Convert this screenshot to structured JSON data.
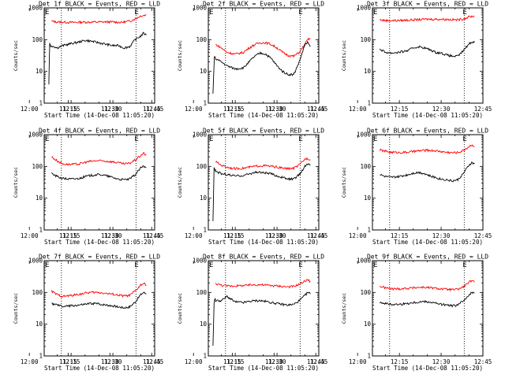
{
  "figure": {
    "background": "#ffffff"
  },
  "colors": {
    "events": "#000000",
    "lld": "#ff0000",
    "axis": "#000000"
  },
  "shared": {
    "xlabel": "Start Time (14-Dec-08 11:05:20)",
    "ylabel": "Counts/sec",
    "xticks": [
      "11:15",
      "11:30",
      "11:45",
      "12:00",
      "12:15",
      "12:30",
      "12:45"
    ],
    "yticks": [
      "1",
      "10",
      "100",
      "1000"
    ],
    "flag_label": "E"
  },
  "chart_data": [
    {
      "type": "line",
      "title": "Det 1f BLACK = Events, RED = LLD",
      "x_range_minutes": [
        5.33,
        45
      ],
      "ylim": [
        1,
        1000
      ],
      "yscale": "log",
      "marker_lines_minutes": [
        11.5,
        38.3
      ],
      "series": [
        {
          "name": "LLD",
          "color": "#ff0000",
          "x": [
            8,
            10,
            15,
            20,
            25,
            30,
            33,
            36,
            38,
            40,
            42
          ],
          "y": [
            380,
            360,
            350,
            355,
            360,
            360,
            350,
            380,
            450,
            560,
            600
          ]
        },
        {
          "name": "Events",
          "color": "#000000",
          "x": [
            7,
            7.3,
            7.6,
            8,
            9,
            10,
            12,
            15,
            18,
            20,
            22,
            25,
            28,
            30,
            32,
            34,
            36,
            38,
            40,
            41,
            42
          ],
          "y": [
            4,
            80,
            60,
            65,
            60,
            55,
            65,
            75,
            85,
            95,
            90,
            80,
            70,
            65,
            65,
            55,
            60,
            100,
            130,
            160,
            140
          ]
        }
      ]
    },
    {
      "type": "line",
      "title": "Det 2f BLACK = Events, RED = LLD",
      "x_range_minutes": [
        5.33,
        45
      ],
      "ylim": [
        1,
        1000
      ],
      "yscale": "log",
      "marker_lines_minutes": [
        11.5,
        38.3
      ],
      "series": [
        {
          "name": "LLD",
          "color": "#ff0000",
          "x": [
            8,
            10,
            12,
            15,
            18,
            20,
            22,
            24,
            26,
            28,
            30,
            32,
            34,
            36,
            38,
            40,
            41,
            42
          ],
          "y": [
            70,
            55,
            40,
            35,
            40,
            55,
            70,
            80,
            80,
            70,
            55,
            40,
            32,
            30,
            40,
            70,
            100,
            110
          ]
        },
        {
          "name": "Events",
          "color": "#000000",
          "x": [
            7,
            7.5,
            8,
            10,
            12,
            15,
            18,
            20,
            22,
            24,
            26,
            28,
            30,
            32,
            34,
            36,
            38,
            40,
            41,
            42
          ],
          "y": [
            2,
            30,
            25,
            20,
            15,
            12,
            13,
            20,
            30,
            38,
            35,
            25,
            15,
            10,
            8,
            8,
            20,
            70,
            80,
            60
          ]
        }
      ]
    },
    {
      "type": "line",
      "title": "Det 3f BLACK = Events, RED = LLD",
      "x_range_minutes": [
        5.33,
        45
      ],
      "ylim": [
        1,
        1000
      ],
      "yscale": "log",
      "marker_lines_minutes": [
        11.5,
        38.3
      ],
      "series": [
        {
          "name": "LLD",
          "color": "#ff0000",
          "x": [
            8,
            10,
            15,
            20,
            25,
            30,
            33,
            36,
            38,
            40,
            42
          ],
          "y": [
            420,
            400,
            400,
            420,
            440,
            440,
            430,
            420,
            450,
            520,
            560
          ]
        },
        {
          "name": "Events",
          "color": "#000000",
          "x": [
            8,
            10,
            12,
            15,
            18,
            20,
            22,
            24,
            26,
            28,
            30,
            32,
            34,
            36,
            38,
            40,
            42
          ],
          "y": [
            50,
            40,
            38,
            40,
            45,
            55,
            60,
            55,
            48,
            40,
            38,
            33,
            30,
            30,
            45,
            75,
            90
          ]
        }
      ]
    },
    {
      "type": "line",
      "title": "Det 4f BLACK = Events, RED = LLD",
      "x_range_minutes": [
        5.33,
        45
      ],
      "ylim": [
        1,
        1000
      ],
      "yscale": "log",
      "marker_lines_minutes": [
        11.5,
        38.3
      ],
      "series": [
        {
          "name": "LLD",
          "color": "#ff0000",
          "x": [
            8,
            10,
            12,
            15,
            18,
            20,
            22,
            24,
            26,
            28,
            30,
            32,
            34,
            36,
            38,
            40,
            41,
            42
          ],
          "y": [
            200,
            150,
            120,
            115,
            120,
            135,
            145,
            150,
            150,
            145,
            140,
            130,
            120,
            125,
            160,
            220,
            260,
            230
          ]
        },
        {
          "name": "Events",
          "color": "#000000",
          "x": [
            8,
            10,
            12,
            15,
            18,
            20,
            22,
            24,
            26,
            28,
            30,
            32,
            34,
            36,
            38,
            40,
            41,
            42
          ],
          "y": [
            60,
            48,
            42,
            40,
            42,
            48,
            52,
            55,
            55,
            50,
            45,
            40,
            38,
            40,
            55,
            90,
            100,
            90
          ]
        }
      ]
    },
    {
      "type": "line",
      "title": "Det 5f BLACK = Events, RED = LLD",
      "x_range_minutes": [
        5.33,
        45
      ],
      "ylim": [
        1,
        1000
      ],
      "yscale": "log",
      "marker_lines_minutes": [
        11.5,
        38.3
      ],
      "series": [
        {
          "name": "LLD",
          "color": "#ff0000",
          "x": [
            8,
            10,
            12,
            15,
            18,
            20,
            22,
            24,
            26,
            28,
            30,
            32,
            34,
            36,
            38,
            40,
            41,
            42
          ],
          "y": [
            140,
            110,
            95,
            85,
            88,
            95,
            100,
            105,
            105,
            100,
            95,
            88,
            85,
            88,
            110,
            170,
            180,
            160
          ]
        },
        {
          "name": "Events",
          "color": "#000000",
          "x": [
            7,
            7.4,
            7.8,
            8,
            10,
            12,
            15,
            18,
            20,
            22,
            24,
            26,
            28,
            30,
            32,
            34,
            36,
            38,
            40,
            41,
            42
          ],
          "y": [
            2,
            90,
            80,
            70,
            60,
            55,
            50,
            52,
            58,
            65,
            65,
            62,
            58,
            50,
            45,
            40,
            40,
            55,
            100,
            120,
            110
          ]
        }
      ]
    },
    {
      "type": "line",
      "title": "Det 6f BLACK = Events, RED = LLD",
      "x_range_minutes": [
        5.33,
        45
      ],
      "ylim": [
        1,
        1000
      ],
      "yscale": "log",
      "marker_lines_minutes": [
        11.5,
        38.3
      ],
      "series": [
        {
          "name": "LLD",
          "color": "#ff0000",
          "x": [
            8,
            10,
            12,
            15,
            18,
            20,
            22,
            24,
            26,
            28,
            30,
            32,
            34,
            36,
            38,
            40,
            41,
            42
          ],
          "y": [
            330,
            300,
            280,
            275,
            280,
            295,
            310,
            320,
            320,
            310,
            295,
            280,
            270,
            275,
            320,
            420,
            480,
            430
          ]
        },
        {
          "name": "Events",
          "color": "#000000",
          "x": [
            8,
            10,
            12,
            15,
            18,
            20,
            22,
            24,
            26,
            28,
            30,
            32,
            34,
            36,
            38,
            40,
            41,
            42
          ],
          "y": [
            55,
            48,
            45,
            48,
            55,
            62,
            65,
            60,
            50,
            45,
            40,
            38,
            35,
            38,
            60,
            110,
            130,
            120
          ]
        }
      ]
    },
    {
      "type": "line",
      "title": "Det 7f BLACK = Events, RED = LLD",
      "x_range_minutes": [
        5.33,
        45
      ],
      "ylim": [
        1,
        1000
      ],
      "yscale": "log",
      "marker_lines_minutes": [
        11.5,
        38.3
      ],
      "series": [
        {
          "name": "LLD",
          "color": "#ff0000",
          "x": [
            8,
            10,
            12,
            15,
            18,
            20,
            22,
            24,
            26,
            28,
            30,
            32,
            34,
            36,
            38,
            40,
            41,
            42
          ],
          "y": [
            110,
            85,
            75,
            80,
            88,
            95,
            100,
            100,
            98,
            92,
            88,
            82,
            78,
            80,
            110,
            170,
            190,
            170
          ]
        },
        {
          "name": "Events",
          "color": "#000000",
          "x": [
            8,
            10,
            12,
            15,
            18,
            20,
            22,
            24,
            26,
            28,
            30,
            32,
            34,
            36,
            38,
            40,
            41,
            42
          ],
          "y": [
            45,
            40,
            36,
            38,
            40,
            42,
            45,
            45,
            42,
            40,
            38,
            35,
            33,
            35,
            50,
            85,
            100,
            90
          ]
        }
      ]
    },
    {
      "type": "line",
      "title": "Det 8f BLACK = Events, RED = LLD",
      "x_range_minutes": [
        5.33,
        45
      ],
      "ylim": [
        1,
        1000
      ],
      "yscale": "log",
      "marker_lines_minutes": [
        11.5,
        38.3
      ],
      "series": [
        {
          "name": "LLD",
          "color": "#ff0000",
          "x": [
            8,
            10,
            12,
            15,
            18,
            20,
            22,
            24,
            26,
            28,
            30,
            32,
            34,
            36,
            38,
            40,
            41,
            42
          ],
          "y": [
            190,
            170,
            160,
            160,
            165,
            170,
            175,
            175,
            170,
            165,
            160,
            155,
            150,
            155,
            180,
            230,
            250,
            220
          ]
        },
        {
          "name": "Events",
          "color": "#000000",
          "x": [
            7,
            7.4,
            7.8,
            8,
            10,
            12,
            15,
            18,
            20,
            22,
            24,
            26,
            28,
            30,
            32,
            34,
            36,
            38,
            40,
            41,
            42
          ],
          "y": [
            2,
            50,
            60,
            55,
            55,
            75,
            50,
            48,
            52,
            55,
            55,
            52,
            48,
            45,
            42,
            40,
            42,
            55,
            80,
            100,
            90
          ]
        }
      ]
    },
    {
      "type": "line",
      "title": "Det 9f BLACK = Events, RED = LLD",
      "x_range_minutes": [
        5.33,
        45
      ],
      "ylim": [
        1,
        1000
      ],
      "yscale": "log",
      "marker_lines_minutes": [
        11.5,
        38.3
      ],
      "series": [
        {
          "name": "LLD",
          "color": "#ff0000",
          "x": [
            8,
            10,
            12,
            15,
            18,
            20,
            22,
            24,
            26,
            28,
            30,
            32,
            34,
            36,
            38,
            40,
            41,
            42
          ],
          "y": [
            155,
            140,
            130,
            130,
            135,
            140,
            145,
            145,
            140,
            135,
            130,
            125,
            122,
            125,
            150,
            210,
            230,
            210
          ]
        },
        {
          "name": "Events",
          "color": "#000000",
          "x": [
            8,
            10,
            12,
            15,
            18,
            20,
            22,
            24,
            26,
            28,
            30,
            32,
            34,
            36,
            38,
            40,
            41,
            42
          ],
          "y": [
            50,
            45,
            42,
            42,
            45,
            48,
            50,
            52,
            50,
            46,
            42,
            40,
            38,
            40,
            55,
            85,
            100,
            95
          ]
        }
      ]
    }
  ]
}
